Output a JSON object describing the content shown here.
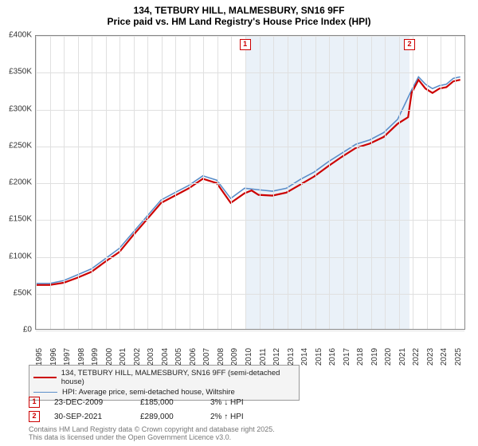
{
  "title_line1": "134, TETBURY HILL, MALMESBURY, SN16 9FF",
  "title_line2": "Price paid vs. HM Land Registry's House Price Index (HPI)",
  "chart": {
    "type": "line",
    "background_color": "#ffffff",
    "grid_color": "#e0e0e0",
    "border_color": "#888888",
    "x_min": 1995,
    "x_max": 2025.8,
    "x_ticks": [
      1995,
      1996,
      1997,
      1998,
      1999,
      2000,
      2001,
      2002,
      2003,
      2004,
      2005,
      2006,
      2007,
      2008,
      2009,
      2010,
      2011,
      2012,
      2013,
      2014,
      2015,
      2016,
      2017,
      2018,
      2019,
      2020,
      2021,
      2022,
      2023,
      2024,
      2025
    ],
    "y_min": 0,
    "y_max": 400,
    "y_ticks": [
      0,
      50,
      100,
      150,
      200,
      250,
      300,
      350,
      400
    ],
    "y_tick_labels": [
      "£0",
      "£50K",
      "£100K",
      "£150K",
      "£200K",
      "£250K",
      "£300K",
      "£350K",
      "£400K"
    ],
    "shade_start": 2009.98,
    "shade_end": 2021.75,
    "shade_color": "#d8e6f3",
    "series": [
      {
        "name": "134, TETBURY HILL, MALMESBURY, SN16 9FF (semi-detached house)",
        "color": "#cc0000",
        "width": 2.2,
        "points": [
          [
            1995,
            60
          ],
          [
            1996,
            60
          ],
          [
            1997,
            63
          ],
          [
            1998,
            70
          ],
          [
            1999,
            78
          ],
          [
            2000,
            92
          ],
          [
            2001,
            105
          ],
          [
            2002,
            128
          ],
          [
            2003,
            150
          ],
          [
            2004,
            172
          ],
          [
            2005,
            182
          ],
          [
            2006,
            192
          ],
          [
            2007,
            205
          ],
          [
            2008,
            199
          ],
          [
            2009,
            172
          ],
          [
            2009.98,
            185
          ],
          [
            2010.5,
            189
          ],
          [
            2011,
            183
          ],
          [
            2012,
            182
          ],
          [
            2013,
            186
          ],
          [
            2014,
            197
          ],
          [
            2015,
            208
          ],
          [
            2016,
            222
          ],
          [
            2017,
            235
          ],
          [
            2018,
            247
          ],
          [
            2019,
            253
          ],
          [
            2020,
            262
          ],
          [
            2021,
            280
          ],
          [
            2021.75,
            289
          ],
          [
            2022,
            322
          ],
          [
            2022.5,
            340
          ],
          [
            2023,
            328
          ],
          [
            2023.5,
            322
          ],
          [
            2024,
            328
          ],
          [
            2024.5,
            330
          ],
          [
            2025,
            338
          ],
          [
            2025.5,
            340
          ]
        ]
      },
      {
        "name": "HPI: Average price, semi-detached house, Wiltshire",
        "color": "#5b8ec9",
        "width": 1.6,
        "points": [
          [
            1995,
            62
          ],
          [
            1996,
            62
          ],
          [
            1997,
            66
          ],
          [
            1998,
            74
          ],
          [
            1999,
            82
          ],
          [
            2000,
            96
          ],
          [
            2001,
            110
          ],
          [
            2002,
            132
          ],
          [
            2003,
            154
          ],
          [
            2004,
            176
          ],
          [
            2005,
            186
          ],
          [
            2006,
            196
          ],
          [
            2007,
            209
          ],
          [
            2008,
            203
          ],
          [
            2009,
            178
          ],
          [
            2010,
            192
          ],
          [
            2011,
            190
          ],
          [
            2012,
            188
          ],
          [
            2013,
            192
          ],
          [
            2014,
            204
          ],
          [
            2015,
            214
          ],
          [
            2016,
            228
          ],
          [
            2017,
            240
          ],
          [
            2018,
            252
          ],
          [
            2019,
            258
          ],
          [
            2020,
            268
          ],
          [
            2021,
            286
          ],
          [
            2022,
            326
          ],
          [
            2022.5,
            344
          ],
          [
            2023,
            334
          ],
          [
            2023.5,
            328
          ],
          [
            2024,
            332
          ],
          [
            2024.5,
            334
          ],
          [
            2025,
            342
          ],
          [
            2025.5,
            344
          ]
        ]
      }
    ],
    "markers": [
      {
        "label": "1",
        "x": 2009.98,
        "color": "#cc0000"
      },
      {
        "label": "2",
        "x": 2021.75,
        "color": "#cc0000"
      }
    ]
  },
  "legend": {
    "items": [
      {
        "label": "134, TETBURY HILL, MALMESBURY, SN16 9FF (semi-detached house)",
        "color": "#cc0000",
        "width": 2.2
      },
      {
        "label": "HPI: Average price, semi-detached house, Wiltshire",
        "color": "#5b8ec9",
        "width": 1.6
      }
    ]
  },
  "events": [
    {
      "label": "1",
      "color": "#cc0000",
      "date": "23-DEC-2009",
      "price": "£185,000",
      "delta": "3% ↓ HPI"
    },
    {
      "label": "2",
      "color": "#cc0000",
      "date": "30-SEP-2021",
      "price": "£289,000",
      "delta": "2% ↑ HPI"
    }
  ],
  "footer_line1": "Contains HM Land Registry data © Crown copyright and database right 2025.",
  "footer_line2": "This data is licensed under the Open Government Licence v3.0."
}
